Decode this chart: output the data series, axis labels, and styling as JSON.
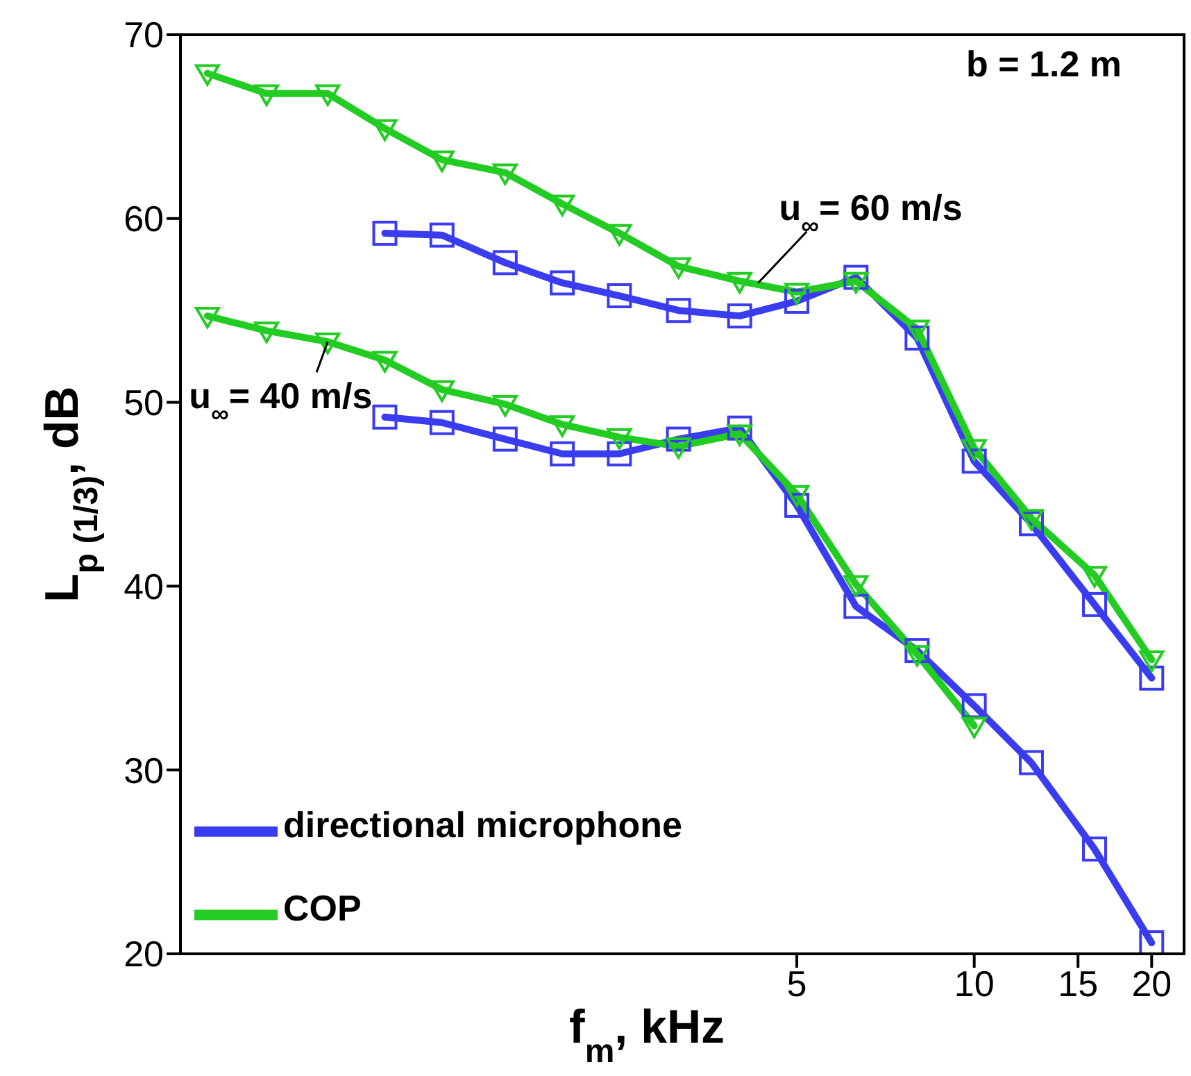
{
  "chart_data": {
    "type": "line",
    "xlabel": "f$_{m}$, kHz",
    "ylabel": "L$_{p (1/3)}$, dB",
    "log": "x",
    "x": [
      0.5,
      0.63,
      0.8,
      1,
      1.25,
      1.6,
      2,
      2.5,
      3.15,
      4,
      5,
      6.3,
      8,
      10,
      12.5,
      16,
      20
    ],
    "xlim": [
      0.45,
      22.7
    ],
    "xticks": [
      5,
      10,
      15,
      20
    ],
    "ylim": [
      20,
      70
    ],
    "yticks": [
      20,
      30,
      40,
      50,
      60,
      70
    ],
    "grid": false,
    "legend": "bottom left",
    "line_style": "solid",
    "series": [
      {
        "name": "directional microphone",
        "color": "#3a3cf0",
        "marker": "square",
        "values": [
          null,
          null,
          null,
          59.2,
          59.1,
          57.6,
          56.5,
          55.8,
          55.0,
          54.7,
          55.5,
          56.8,
          53.5,
          46.8,
          43.4,
          39.0,
          35.0
        ]
      },
      {
        "name": "COP",
        "color": "#22cc22",
        "marker": "triangle",
        "values": [
          67.9,
          66.8,
          66.8,
          64.9,
          63.2,
          62.5,
          60.8,
          59.2,
          57.4,
          56.6,
          56.0,
          56.6,
          54.0,
          47.5,
          43.7,
          40.6,
          36.0
        ]
      },
      {
        "color": "#3a3cf0",
        "marker": "square",
        "values": [
          null,
          null,
          null,
          49.2,
          48.9,
          48.0,
          47.2,
          47.2,
          48.0,
          48.6,
          44.4,
          38.9,
          36.5,
          33.5,
          30.4,
          25.7,
          20.6
        ]
      },
      {
        "color": "#22cc22",
        "marker": "triangle",
        "values": [
          54.7,
          53.9,
          53.3,
          52.3,
          50.7,
          49.9,
          48.8,
          48.1,
          47.6,
          48.3,
          45.0,
          40.1,
          36.3,
          32.4,
          null,
          null,
          null
        ]
      }
    ],
    "annotations": [
      "b = 1.2 m",
      {
        "text": "u$_{∞}$= 60 m/s",
        "x": 4.3,
        "y": 56.5
      },
      {
        "text": "u$_{∞}$= 40 m/s",
        "x": 0.8,
        "y": 53.3
      }
    ]
  }
}
